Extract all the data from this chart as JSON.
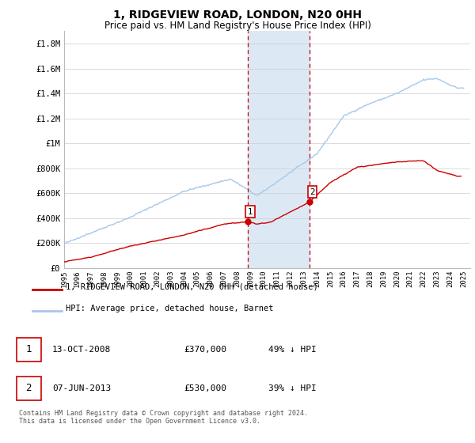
{
  "title": "1, RIDGEVIEW ROAD, LONDON, N20 0HH",
  "subtitle": "Price paid vs. HM Land Registry's House Price Index (HPI)",
  "ylabel_ticks": [
    "£0",
    "£200K",
    "£400K",
    "£600K",
    "£800K",
    "£1M",
    "£1.2M",
    "£1.4M",
    "£1.6M",
    "£1.8M"
  ],
  "ytick_values": [
    0,
    200000,
    400000,
    600000,
    800000,
    1000000,
    1200000,
    1400000,
    1600000,
    1800000
  ],
  "ylim": [
    0,
    1900000
  ],
  "xlim_start": 1995.0,
  "xlim_end": 2025.5,
  "hpi_color": "#a8c8e8",
  "price_color": "#cc0000",
  "vline_color": "#cc0000",
  "highlight_fill": "#dce9f5",
  "transaction1_x": 2008.79,
  "transaction1_y": 370000,
  "transaction1_label": "1",
  "transaction1_date": "13-OCT-2008",
  "transaction1_price": "£370,000",
  "transaction1_pct": "49% ↓ HPI",
  "transaction2_x": 2013.44,
  "transaction2_y": 530000,
  "transaction2_label": "2",
  "transaction2_date": "07-JUN-2013",
  "transaction2_price": "£530,000",
  "transaction2_pct": "39% ↓ HPI",
  "legend_line1": "1, RIDGEVIEW ROAD, LONDON, N20 0HH (detached house)",
  "legend_line2": "HPI: Average price, detached house, Barnet",
  "footer": "Contains HM Land Registry data © Crown copyright and database right 2024.\nThis data is licensed under the Open Government Licence v3.0.",
  "xtick_years": [
    1995,
    1996,
    1997,
    1998,
    1999,
    2000,
    2001,
    2002,
    2003,
    2004,
    2005,
    2006,
    2007,
    2008,
    2009,
    2010,
    2011,
    2012,
    2013,
    2014,
    2015,
    2016,
    2017,
    2018,
    2019,
    2020,
    2021,
    2022,
    2023,
    2024,
    2025
  ]
}
